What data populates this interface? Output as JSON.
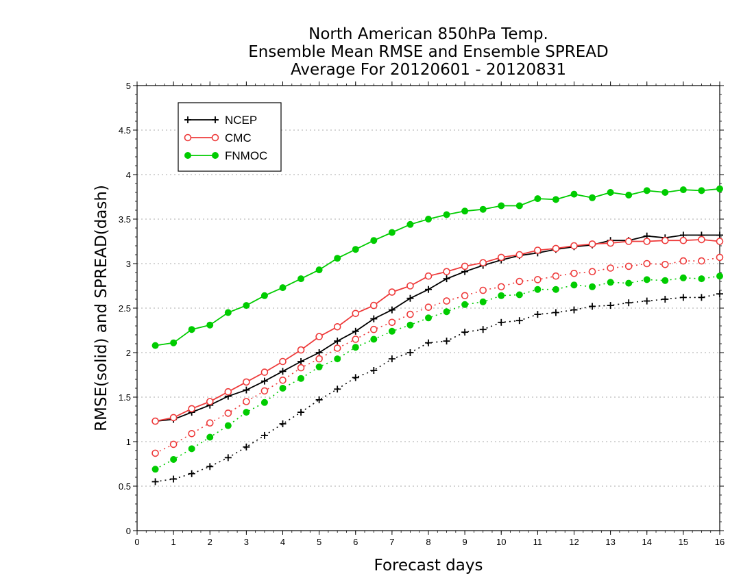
{
  "chart_data": {
    "type": "line",
    "title": [
      "North American 850hPa Temp.",
      "Ensemble Mean RMSE and Ensemble SPREAD",
      "Average For 20120601 - 20120831"
    ],
    "xlabel": "Forecast days",
    "ylabel": "RMSE(solid) and SPREAD(dash)",
    "xlim": [
      0,
      16
    ],
    "ylim": [
      0,
      5
    ],
    "xticks": [
      "0",
      "1",
      "2",
      "3",
      "4",
      "5",
      "6",
      "7",
      "8",
      "9",
      "10",
      "11",
      "12",
      "13",
      "14",
      "15",
      "16"
    ],
    "yticks": [
      "0",
      "0.5",
      "1",
      "1.5",
      "2",
      "2.5",
      "3",
      "3.5",
      "4",
      "4.5",
      "5"
    ],
    "grid": true,
    "legend_position": "top-left",
    "x": [
      0.5,
      1,
      1.5,
      2,
      2.5,
      3,
      3.5,
      4,
      4.5,
      5,
      5.5,
      6,
      6.5,
      7,
      7.5,
      8,
      8.5,
      9,
      9.5,
      10,
      10.5,
      11,
      11.5,
      12,
      12.5,
      13,
      13.5,
      14,
      14.5,
      15,
      15.5,
      16
    ],
    "series": [
      {
        "name": "NCEP",
        "color": "#000000",
        "marker": "plus",
        "style": "solid",
        "metric": "RMSE",
        "values": [
          1.23,
          1.25,
          1.33,
          1.41,
          1.51,
          1.58,
          1.68,
          1.79,
          1.9,
          2.0,
          2.13,
          2.24,
          2.38,
          2.48,
          2.61,
          2.71,
          2.83,
          2.91,
          2.98,
          3.04,
          3.09,
          3.12,
          3.16,
          3.19,
          3.21,
          3.26,
          3.26,
          3.31,
          3.29,
          3.32,
          3.32,
          3.32
        ]
      },
      {
        "name": "CMC",
        "color": "#ee3b3b",
        "marker": "open-circle",
        "style": "solid",
        "metric": "RMSE",
        "values": [
          1.23,
          1.27,
          1.37,
          1.45,
          1.56,
          1.67,
          1.78,
          1.9,
          2.03,
          2.18,
          2.29,
          2.44,
          2.53,
          2.68,
          2.75,
          2.86,
          2.91,
          2.97,
          3.01,
          3.07,
          3.1,
          3.15,
          3.17,
          3.2,
          3.22,
          3.23,
          3.25,
          3.25,
          3.26,
          3.26,
          3.27,
          3.25
        ]
      },
      {
        "name": "FNMOC",
        "color": "#00cc00",
        "marker": "filled-circle",
        "style": "solid",
        "metric": "RMSE",
        "values": [
          2.08,
          2.11,
          2.26,
          2.31,
          2.45,
          2.53,
          2.64,
          2.73,
          2.83,
          2.93,
          3.06,
          3.16,
          3.26,
          3.35,
          3.44,
          3.5,
          3.55,
          3.59,
          3.61,
          3.65,
          3.65,
          3.73,
          3.72,
          3.78,
          3.74,
          3.8,
          3.77,
          3.82,
          3.8,
          3.83,
          3.82,
          3.84
        ]
      },
      {
        "name": "NCEP",
        "color": "#000000",
        "marker": "plus",
        "style": "dotted",
        "metric": "SPREAD",
        "values": [
          0.55,
          0.58,
          0.64,
          0.72,
          0.82,
          0.94,
          1.07,
          1.2,
          1.33,
          1.47,
          1.59,
          1.72,
          1.8,
          1.93,
          2.0,
          2.11,
          2.13,
          2.23,
          2.26,
          2.34,
          2.36,
          2.43,
          2.45,
          2.48,
          2.52,
          2.53,
          2.56,
          2.58,
          2.6,
          2.62,
          2.62,
          2.66
        ]
      },
      {
        "name": "CMC",
        "color": "#ee3b3b",
        "marker": "open-circle",
        "style": "dotted",
        "metric": "SPREAD",
        "values": [
          0.87,
          0.97,
          1.09,
          1.21,
          1.32,
          1.45,
          1.57,
          1.69,
          1.83,
          1.93,
          2.05,
          2.15,
          2.26,
          2.34,
          2.43,
          2.51,
          2.58,
          2.64,
          2.7,
          2.74,
          2.8,
          2.82,
          2.86,
          2.89,
          2.91,
          2.95,
          2.97,
          3.0,
          2.99,
          3.03,
          3.03,
          3.07
        ]
      },
      {
        "name": "FNMOC",
        "color": "#00cc00",
        "marker": "filled-circle",
        "style": "dotted",
        "metric": "SPREAD",
        "values": [
          0.69,
          0.8,
          0.92,
          1.05,
          1.18,
          1.33,
          1.44,
          1.6,
          1.71,
          1.84,
          1.93,
          2.06,
          2.15,
          2.24,
          2.31,
          2.39,
          2.46,
          2.54,
          2.57,
          2.64,
          2.65,
          2.71,
          2.71,
          2.76,
          2.74,
          2.79,
          2.78,
          2.82,
          2.81,
          2.84,
          2.83,
          2.86
        ]
      }
    ],
    "legend": [
      {
        "label": "NCEP",
        "color": "#000000",
        "marker": "plus"
      },
      {
        "label": "CMC",
        "color": "#ee3b3b",
        "marker": "open-circle"
      },
      {
        "label": "FNMOC",
        "color": "#00cc00",
        "marker": "filled-circle"
      }
    ]
  }
}
